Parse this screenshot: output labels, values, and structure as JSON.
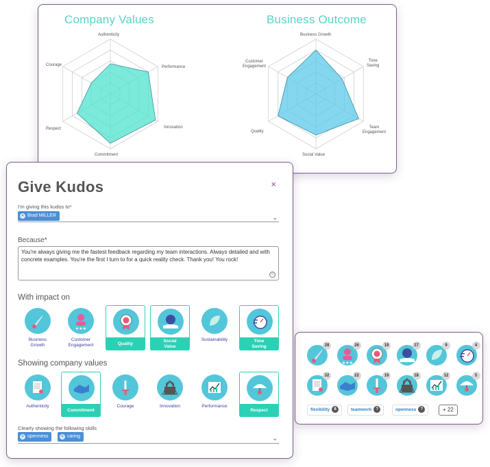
{
  "radar_left": {
    "title": "Company Values",
    "axes": [
      "Authenticity",
      "Performance",
      "Innovation",
      "Commitment",
      "Respect",
      "Courage"
    ],
    "values": [
      0.55,
      0.8,
      0.95,
      0.9,
      0.7,
      0.4
    ],
    "color": "#4fe3cf"
  },
  "radar_right": {
    "title": "Business Outcome",
    "axes": [
      "Business Growth",
      "Time\nSaving",
      "Team\nEngagement",
      "Social Value",
      "Quality",
      "Customer\nEngagement"
    ],
    "values": [
      0.8,
      0.55,
      0.9,
      0.75,
      0.8,
      0.6
    ],
    "color": "#5cc8ea"
  },
  "icons_panel": {
    "rows": [
      [
        {
          "icon": "rocket-icon",
          "count": "28"
        },
        {
          "icon": "customer-stars-icon",
          "count": "26"
        },
        {
          "icon": "medal-icon",
          "count": "19"
        },
        {
          "icon": "globe-hand-icon",
          "count": "17"
        },
        {
          "icon": "leaf-icon",
          "count": "9"
        },
        {
          "icon": "stopwatch-icon",
          "count": "4"
        }
      ],
      [
        {
          "icon": "document-icon",
          "count": "32"
        },
        {
          "icon": "handshake-icon",
          "count": "22"
        },
        {
          "icon": "sword-icon",
          "count": "19"
        },
        {
          "icon": "lock-icon",
          "count": "18"
        },
        {
          "icon": "chart-icon",
          "count": "12"
        },
        {
          "icon": "umbrella-icon",
          "count": "5"
        }
      ]
    ],
    "skills": [
      {
        "label": "flexibility",
        "count": "8"
      },
      {
        "label": "teamwork",
        "count": "?"
      },
      {
        "label": "openness",
        "count": "?"
      }
    ],
    "more": "+ 22"
  },
  "kudos": {
    "title": "Give Kudos",
    "close": "×",
    "recipient_label": "I'm giving this kudos to*",
    "recipient_chip": "Brad MILLER",
    "because_label": "Because*",
    "because_text": "You're always giving me the fastest feedback regarding my team interactions. Always detailed and with concrete examples. You're the first I turn to for a quick reality check. Thank you! You rock!",
    "impact_label": "With impact on",
    "impact_tiles": [
      {
        "label": "Business\nGrowth",
        "selected": false,
        "icon": "rocket-icon"
      },
      {
        "label": "Customer\nEngagement",
        "selected": false,
        "icon": "customer-stars-icon"
      },
      {
        "label": "Quality",
        "selected": true,
        "icon": "medal-icon"
      },
      {
        "label": "Social\nValue",
        "selected": true,
        "icon": "globe-hand-icon"
      },
      {
        "label": "Sustainability",
        "selected": false,
        "icon": "leaf-icon"
      },
      {
        "label": "Time\nSaving",
        "selected": true,
        "icon": "stopwatch-icon"
      }
    ],
    "values_label": "Showing company values",
    "value_tiles": [
      {
        "label": "Authenticity",
        "selected": false,
        "icon": "document-icon"
      },
      {
        "label": "Commitment",
        "selected": true,
        "icon": "handshake-icon"
      },
      {
        "label": "Courage",
        "selected": false,
        "icon": "sword-icon"
      },
      {
        "label": "Innovation",
        "selected": false,
        "icon": "lock-icon"
      },
      {
        "label": "Performance",
        "selected": false,
        "icon": "chart-icon"
      },
      {
        "label": "Respect",
        "selected": true,
        "icon": "umbrella-icon"
      }
    ],
    "skills_label": "Clearly showing the following skills",
    "skill_chips": [
      "openness",
      "caring"
    ]
  }
}
